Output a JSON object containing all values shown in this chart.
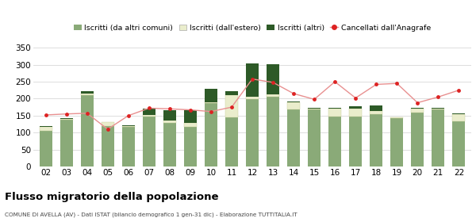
{
  "years": [
    "02",
    "03",
    "04",
    "05",
    "06",
    "07",
    "08",
    "09",
    "10",
    "11",
    "12",
    "13",
    "14",
    "15",
    "16",
    "17",
    "18",
    "19",
    "20",
    "21",
    "22"
  ],
  "iscritti_altri_comuni": [
    105,
    138,
    210,
    120,
    118,
    148,
    128,
    118,
    188,
    145,
    198,
    205,
    168,
    168,
    148,
    148,
    155,
    142,
    158,
    168,
    133
  ],
  "iscritti_estero": [
    12,
    2,
    5,
    10,
    2,
    5,
    8,
    10,
    2,
    65,
    8,
    8,
    22,
    2,
    22,
    22,
    8,
    2,
    12,
    2,
    22
  ],
  "iscritti_altri": [
    2,
    2,
    8,
    2,
    2,
    18,
    30,
    38,
    40,
    12,
    98,
    88,
    2,
    2,
    2,
    8,
    18,
    2,
    2,
    2,
    2
  ],
  "cancellati": [
    152,
    155,
    157,
    110,
    150,
    172,
    170,
    167,
    162,
    175,
    258,
    248,
    215,
    198,
    250,
    202,
    242,
    245,
    188,
    205,
    225
  ],
  "color_altri_comuni": "#8aaa78",
  "color_estero": "#eaedcc",
  "color_altri": "#2d5a27",
  "color_cancellati_dot": "#dd2222",
  "color_cancellati_line": "#e89090",
  "grid_color": "#d8d8d8",
  "ylim": [
    0,
    360
  ],
  "yticks": [
    0,
    50,
    100,
    150,
    200,
    250,
    300,
    350
  ],
  "title": "Flusso migratorio della popolazione",
  "subtitle": "COMUNE DI AVELLA (AV) - Dati ISTAT (bilancio demografico 1 gen-31 dic) - Elaborazione TUTTITALIA.IT",
  "legend_labels": [
    "Iscritti (da altri comuni)",
    "Iscritti (dall'estero)",
    "Iscritti (altri)",
    "Cancellati dall'Anagrafe"
  ]
}
